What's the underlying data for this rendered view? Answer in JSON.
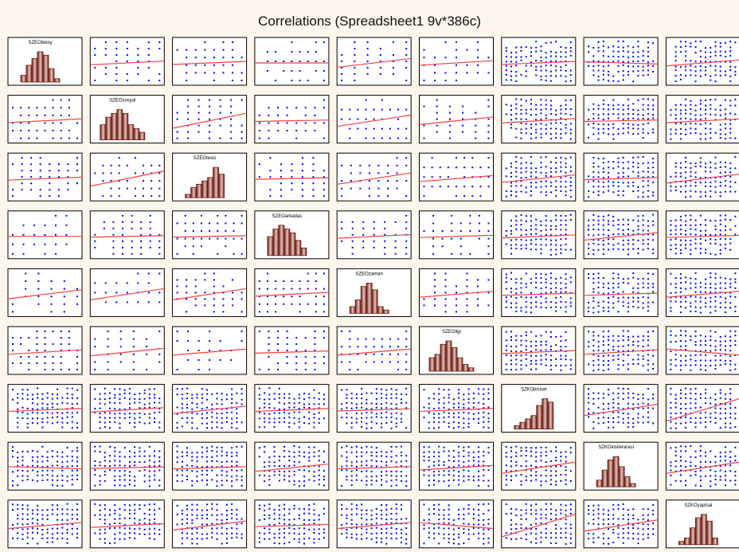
{
  "chart_data": {
    "type": "scatter",
    "subtype": "correlation-matrix",
    "title": "Correlations (Spreadsheet1 9v*386c)",
    "variables": [
      "SZEObiesy",
      "SZEOsosyal",
      "SZEOtesis",
      "SZEOarkadas",
      "SZEOzaman",
      "SZEOilgi",
      "SZKOkisisel",
      "SZKOkisilerarasi",
      "SZKOyapisal"
    ],
    "diagonal": "histogram",
    "off_diagonal": "scatter with linear fit",
    "histograms": [
      [
        2,
        5,
        7,
        9,
        8,
        4,
        1
      ],
      [
        4,
        6,
        7,
        8,
        7,
        4,
        3,
        2
      ],
      [
        1,
        3,
        4,
        5,
        6,
        9,
        7
      ],
      [
        5,
        7,
        8,
        7,
        6,
        4,
        2
      ],
      [
        2,
        4,
        8,
        9,
        7,
        2,
        1
      ],
      [
        4,
        5,
        8,
        9,
        7,
        4,
        2,
        1
      ],
      [
        1,
        2,
        3,
        4,
        7,
        9,
        8
      ],
      [
        2,
        5,
        8,
        9,
        6,
        3,
        1
      ],
      [
        1,
        2,
        5,
        8,
        9,
        7,
        2
      ]
    ],
    "fit_slopes": [
      [
        0,
        0.05,
        0.04,
        0.0,
        0.12,
        0.06,
        0.04,
        -0.03,
        0.08
      ],
      [
        0.05,
        0,
        0.2,
        0.02,
        0.15,
        0.1,
        0.06,
        0.02,
        0.05
      ],
      [
        0.04,
        0.2,
        0,
        0.02,
        0.15,
        0.08,
        0.1,
        0.03,
        0.12
      ],
      [
        0.0,
        0.02,
        0.02,
        0,
        0.05,
        0.03,
        0.04,
        0.1,
        0.03
      ],
      [
        0.12,
        0.15,
        0.15,
        0.05,
        0,
        0.08,
        0.03,
        0.03,
        0.08
      ],
      [
        0.06,
        0.1,
        0.08,
        0.03,
        0.08,
        0,
        0.04,
        0.06,
        -0.08
      ],
      [
        0.04,
        0.06,
        0.1,
        0.04,
        0.03,
        0.04,
        0,
        0.15,
        0.3
      ],
      [
        -0.03,
        0.02,
        0.03,
        0.1,
        0.03,
        0.06,
        0.15,
        0,
        0.15
      ],
      [
        0.08,
        0.05,
        0.12,
        0.03,
        0.08,
        -0.08,
        0.3,
        0.15,
        0
      ]
    ],
    "colors": {
      "points": "#0000ee",
      "fit_line": "#ff3b3b",
      "bar_dark": "#6a1a12",
      "bar_light": "#e8c6bc",
      "cell_background": "#ffffff",
      "page_background": "#fcf6ec"
    }
  }
}
